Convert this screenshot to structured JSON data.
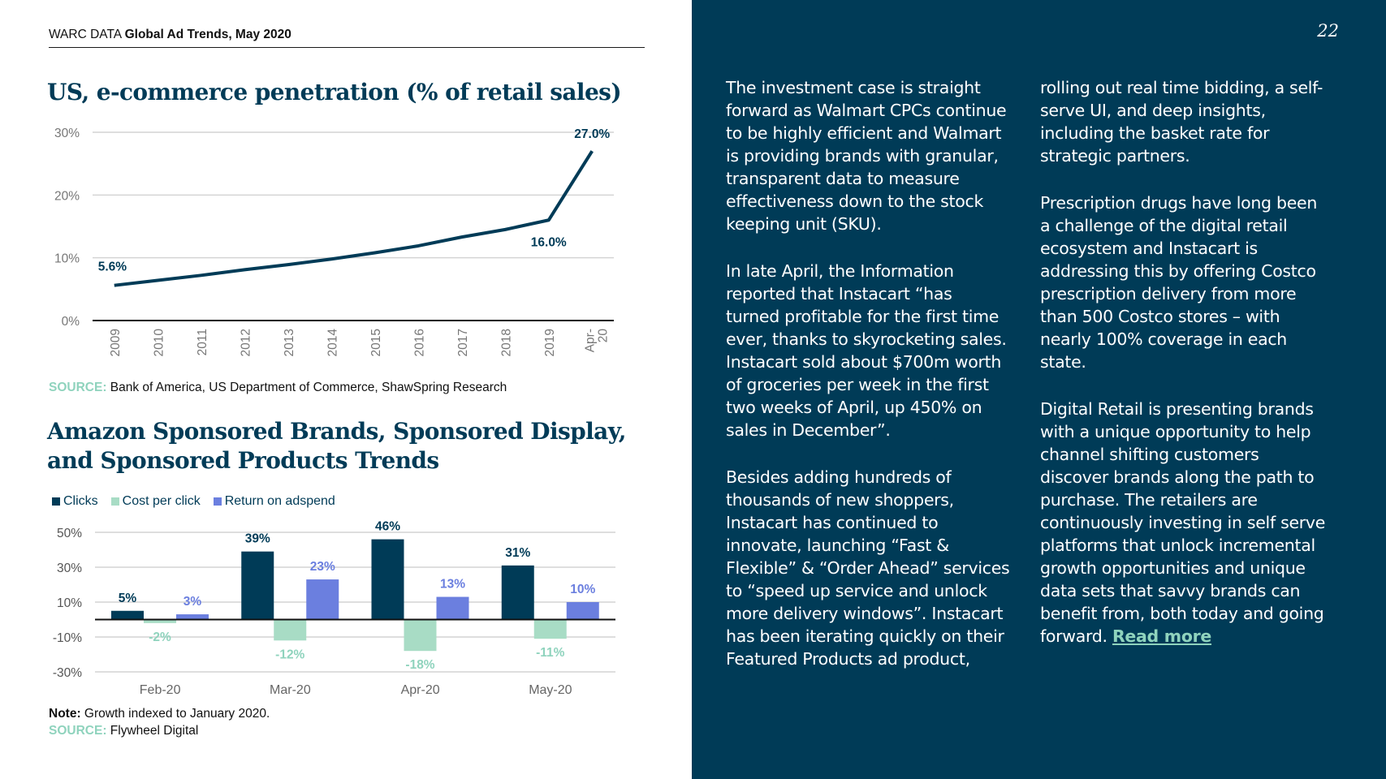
{
  "header": {
    "prefix": "WARC DATA ",
    "title": "Global Ad Trends, May 2020"
  },
  "page_number": "22",
  "chart1_title": "US, e-commerce penetration (% of retail sales)",
  "chart1_source": {
    "label": "SOURCE:",
    "text": " Bank of America, US Department of Commerce, ShawSpring Research"
  },
  "chart2_title": "Amazon Sponsored Brands, Sponsored Display, and Sponsored Products Trends",
  "chart2_note": {
    "label": "Note:",
    "text": " Growth indexed to January 2020."
  },
  "chart2_source": {
    "label": "SOURCE:",
    "text": " Flywheel Digital"
  },
  "colors": {
    "navy": "#003b57",
    "mint": "#a8dcc5",
    "blue": "#6b7fdf",
    "source_label": "#8fd3bd"
  },
  "chart_data": [
    {
      "type": "line",
      "title": "US, e-commerce penetration (% of retail sales)",
      "categories": [
        "2009",
        "2010",
        "2011",
        "2012",
        "2013",
        "2014",
        "2015",
        "2016",
        "2017",
        "2018",
        "2019",
        "Apr-20"
      ],
      "values": [
        5.6,
        6.4,
        7.2,
        8.1,
        8.9,
        9.8,
        10.8,
        11.9,
        13.3,
        14.5,
        16.0,
        27.0
      ],
      "yticks": [
        "0%",
        "10%",
        "20%",
        "30%"
      ],
      "ylim": [
        0,
        30
      ],
      "data_labels": [
        {
          "index": 0,
          "text": "5.6%"
        },
        {
          "index": 10,
          "text": "16.0%"
        },
        {
          "index": 11,
          "text": "27.0%"
        }
      ],
      "xlabel": "",
      "ylabel": ""
    },
    {
      "type": "bar",
      "title": "Amazon Sponsored Brands, Sponsored Display, and Sponsored Products Trends",
      "categories": [
        "Feb-20",
        "Mar-20",
        "Apr-20",
        "May-20"
      ],
      "series": [
        {
          "name": "Clicks",
          "color": "#003b57",
          "values": [
            5,
            39,
            46,
            31
          ],
          "labels": [
            "5%",
            "39%",
            "46%",
            "31%"
          ]
        },
        {
          "name": "Cost per click",
          "color": "#a8dcc5",
          "values": [
            -2,
            -12,
            -18,
            -11
          ],
          "labels": [
            "-2%",
            "-12%",
            "-18%",
            "-11%"
          ]
        },
        {
          "name": "Return on adspend",
          "color": "#6b7fdf",
          "values": [
            3,
            23,
            13,
            10
          ],
          "labels": [
            "3%",
            "23%",
            "13%",
            "10%"
          ]
        }
      ],
      "yticks": [
        "50%",
        "30%",
        "10%",
        "-10%",
        "-30%"
      ],
      "ytick_values": [
        50,
        30,
        10,
        -10,
        -30
      ],
      "ylim": [
        -30,
        50
      ],
      "legend": "top-left"
    }
  ],
  "column1": [
    "The investment case is straight forward as Walmart CPCs continue to be highly efficient and Walmart is providing brands with granular, transparent data to measure effectiveness down to the stock keeping unit (SKU).",
    "In late April, the Information reported that Instacart “has turned profitable for the first time ever, thanks to skyrocketing sales. Instacart sold about $700m worth of groceries per week in the first two weeks of April, up 450% on sales in December”.",
    "Besides adding hundreds of thousands of new shoppers, Instacart has continued to innovate, launching “Fast & Flexible” & “Order Ahead” services to “speed up service and unlock more delivery windows”. Instacart has been iterating quickly on their Featured Products ad product,"
  ],
  "column2": [
    "rolling out real time bidding, a self-serve UI, and deep insights, including the basket rate for strategic partners.",
    "Prescription drugs have long been a challenge of the digital retail ecosystem and Instacart is addressing this by offering Costco prescription delivery from more than 500 Costco stores – with nearly 100% coverage in each state.",
    "Digital Retail is presenting brands with a unique opportunity to help channel shifting customers discover brands along the path to purchase.  The retailers are continuously investing in self serve platforms that unlock incremental growth opportunities and unique data sets that savvy brands can benefit from, both today and going forward.  "
  ],
  "read_more": "Read more"
}
